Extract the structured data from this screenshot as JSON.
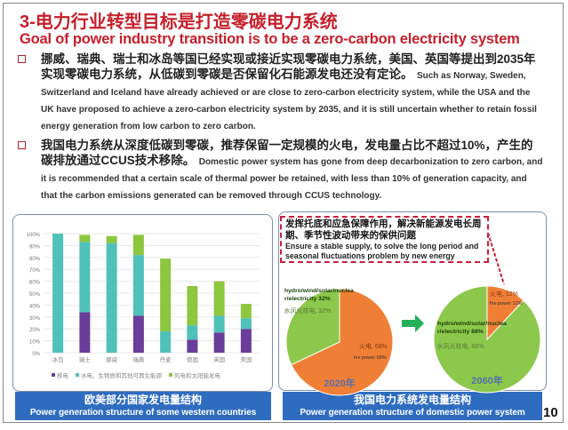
{
  "title_zh": "3-电力行业转型目标是打造零碳电力系统",
  "title_en": "Goal of power industry transition is to be a zero-carbon electricity system",
  "bullets": [
    {
      "zh": "挪威、瑞典、瑞士和冰岛等国已经实现或接近实现零碳电力系统，美国、英国等提出到2035年实现零碳电力系统，从低碳到零碳是否保留化石能源发电还没有定论。",
      "en": "Such as Norway, Sweden, Switzerland and Iceland have already achieved or are close to zero-carbon electricity system, while the USA and the UK have proposed to achieve a zero-carbon electricity system by 2035, and it is still uncertain whether to retain fossil energy generation from low carbon to zero carbon."
    },
    {
      "zh": "我国电力系统从深度低碳到零碳，推荐保留一定规模的火电，发电量占比不超过10%，产生的碳排放通过CCUS技术移除。",
      "en": "Domestic power system has gone from deep decarbonization to zero carbon, and it is recommended that a certain scale of thermal power be retained, with less than 10% of generation capacity, and that the carbon emissions generated can be removed through CCUS technology."
    }
  ],
  "left_caption": {
    "zh": "欧美部分国家发电量结构",
    "en": "Power generation structure of some western countries"
  },
  "right_caption": {
    "zh": "我国电力系统发电量结构",
    "en": "Power generation structure of domestic power system"
  },
  "callout": {
    "zh": "发挥托底和应急保障作用，解决新能源发电长周期、季节性波动带来的保供问题",
    "en": "Ensure a stable supply, to solve the long period and seasonal fluctuations problem by new energy"
  },
  "page_number": "10",
  "chart_data": [
    {
      "type": "bar",
      "stacked": true,
      "categories": [
        "冰岛",
        "瑞士",
        "挪威",
        "瑞典",
        "丹麦",
        "德国",
        "英国",
        "美国"
      ],
      "series": [
        {
          "name": "核电",
          "color": "#6a3d9a",
          "values": [
            0,
            34,
            0,
            31,
            0,
            11,
            17,
            20
          ]
        },
        {
          "name": "水电、生物质和其他可再生能源",
          "color": "#4fc1b9",
          "values": [
            100,
            59,
            92,
            51,
            18,
            12,
            14,
            9
          ]
        },
        {
          "name": "风电和太阳能发电",
          "color": "#8dc63f",
          "values": [
            0,
            6,
            6,
            17,
            61,
            33,
            29,
            12
          ]
        }
      ],
      "yticks": [
        "0%",
        "10%",
        "20%",
        "30%",
        "40%",
        "50%",
        "60%",
        "70%",
        "80%",
        "90%",
        "100%"
      ],
      "ylim": [
        0,
        100
      ],
      "grid": true,
      "legend": "bottom"
    },
    {
      "type": "pie",
      "title": "2020年",
      "slices": [
        {
          "label_zh": "火电, 68%",
          "label_en": "fire power 68%",
          "value": 68,
          "color": "#f07f36"
        },
        {
          "label_zh": "水风光核电, 32%",
          "label_en": "hydro/wind/solar/nuclear/electricity 32%",
          "value": 32,
          "color": "#8cc84b"
        }
      ]
    },
    {
      "type": "pie",
      "title": "2060年",
      "slices": [
        {
          "label_zh": "火电, 12%",
          "label_en": "fire power 12%",
          "value": 12,
          "color": "#f07f36"
        },
        {
          "label_zh": "水风光核电, 88%",
          "label_en": "hydro/wind/solar/nuclear/electricity 88%",
          "value": 88,
          "color": "#8cc84b"
        }
      ]
    }
  ]
}
